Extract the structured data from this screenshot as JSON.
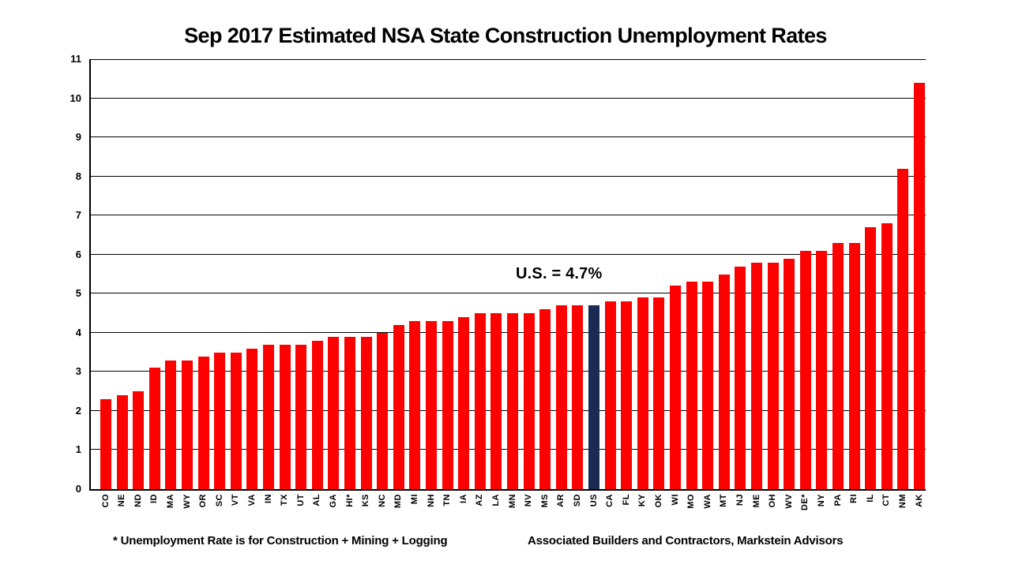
{
  "title": "Sep 2017 Estimated NSA State Construction Unemployment Rates",
  "annotation": "U.S. = 4.7%",
  "footnotes": {
    "left": "* Unemployment Rate is for Construction + Mining + Logging",
    "right": "Associated Builders and Contractors, Markstein Advisors"
  },
  "colors": {
    "bar": "#ff0000",
    "highlight": "#1b2a52",
    "grid": "#000000",
    "axis": "#000000",
    "text": "#000000",
    "background": "#ffffff"
  },
  "chart_data": {
    "type": "bar",
    "title": "Sep 2017 Estimated NSA State Construction Unemployment Rates",
    "xlabel": "",
    "ylabel": "",
    "legend": "none",
    "grid": "horizontal",
    "ylim": [
      0,
      11
    ],
    "yticks": [
      0,
      1,
      2,
      3,
      4,
      5,
      6,
      7,
      8,
      9,
      10,
      11
    ],
    "annotation": "U.S. = 4.7%",
    "highlight_category": "US",
    "categories": [
      "CO",
      "NE",
      "ND",
      "ID",
      "MA",
      "WY",
      "OR",
      "SC",
      "VT",
      "VA",
      "IN",
      "TX",
      "UT",
      "AL",
      "GA",
      "HI*",
      "KS",
      "NC",
      "MD",
      "MI",
      "NH",
      "TN",
      "IA",
      "AZ",
      "LA",
      "MN",
      "NV",
      "MS",
      "AR",
      "SD",
      "US",
      "CA",
      "FL",
      "KY",
      "OK",
      "WI",
      "MO",
      "WA",
      "MT",
      "NJ",
      "ME",
      "OH",
      "WV",
      "DE*",
      "NY",
      "PA",
      "RI",
      "IL",
      "CT",
      "NM",
      "AK"
    ],
    "values": [
      2.3,
      2.4,
      2.5,
      3.1,
      3.3,
      3.3,
      3.4,
      3.5,
      3.5,
      3.6,
      3.7,
      3.7,
      3.7,
      3.8,
      3.9,
      3.9,
      3.9,
      4.0,
      4.2,
      4.3,
      4.3,
      4.3,
      4.4,
      4.5,
      4.5,
      4.5,
      4.5,
      4.6,
      4.7,
      4.7,
      4.7,
      4.8,
      4.8,
      4.9,
      4.9,
      5.2,
      5.3,
      5.3,
      5.5,
      5.7,
      5.8,
      5.8,
      5.9,
      6.1,
      6.1,
      6.3,
      6.3,
      6.7,
      6.8,
      8.2,
      10.4
    ]
  }
}
